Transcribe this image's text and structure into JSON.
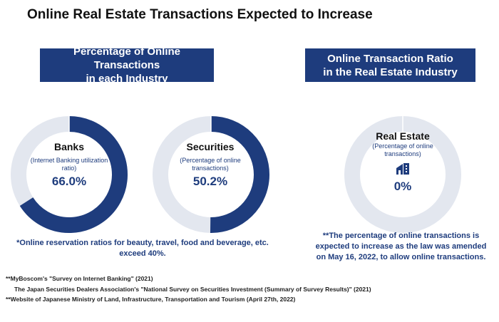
{
  "title": "Online Real Estate Transactions Expected to Increase",
  "left_header": [
    "Percentage of Online Transactions",
    "in each Industry"
  ],
  "right_header": [
    "Online Transaction Ratio",
    "in the Real Estate Industry"
  ],
  "colors": {
    "filled": "#1e3c7d",
    "empty": "#e3e7ef"
  },
  "chart_data": [
    {
      "type": "pie",
      "name": "Banks",
      "subtitle": "(Internet Banking utilization ratio)",
      "value": 66.0,
      "label": "66.0%"
    },
    {
      "type": "pie",
      "name": "Securities",
      "subtitle": "(Percentage of online transactions)",
      "value": 50.2,
      "label": "50.2%"
    },
    {
      "type": "pie",
      "name": "Real Estate",
      "subtitle": "(Percentage of online transactions)",
      "value": 0,
      "label": "0%",
      "icon": "building-icon"
    }
  ],
  "left_note": [
    "*Online reservation ratios for beauty, travel, food and beverage, etc.",
    "exceed 40%."
  ],
  "right_note": [
    "**The percentage of online transactions is",
    "expected to increase as the law was amended",
    "on May 16, 2022, to allow online transactions."
  ],
  "footnotes": [
    "**MyBoscom's \"Survey on Internet Banking\" (2021)",
    "The Japan Securities Dealers Association's \"National Survey on Securities Investment (Summary of Survey Results)\" (2021)",
    "**Website of Japanese Ministry of Land, Infrastructure, Transportation and Tourism (April 27th, 2022)"
  ]
}
